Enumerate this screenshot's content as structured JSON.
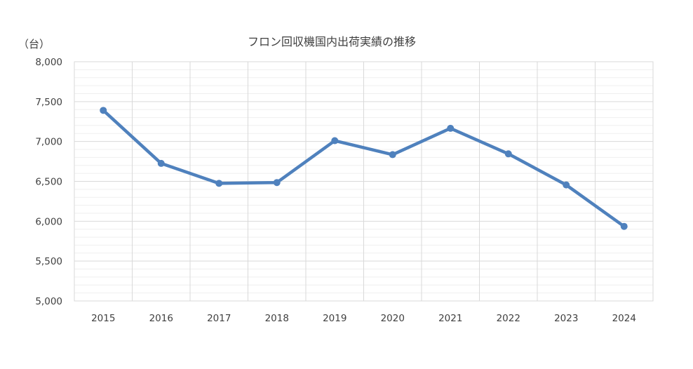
{
  "chart_data": {
    "type": "line",
    "title": "フロン回収機国内出荷実績の推移",
    "ylabel": "（台）",
    "xlabel": "",
    "categories": [
      "2015",
      "2016",
      "2017",
      "2018",
      "2019",
      "2020",
      "2021",
      "2022",
      "2023",
      "2024"
    ],
    "values": [
      7390,
      6725,
      6475,
      6485,
      7010,
      6835,
      7165,
      6845,
      6455,
      5935
    ],
    "ylim": [
      5000,
      8000
    ],
    "yticks": [
      5000,
      5500,
      6000,
      6500,
      7000,
      7500,
      8000
    ],
    "ytick_labels": [
      "5,000",
      "5,500",
      "6,000",
      "6,500",
      "7,000",
      "7,500",
      "8,000"
    ],
    "grid": true,
    "minor_grid": true,
    "legend": "none",
    "colors": {
      "line": "#4f81bd",
      "major_grid": "#d9d9d9",
      "minor_grid": "#efefef",
      "text": "#404040"
    }
  }
}
